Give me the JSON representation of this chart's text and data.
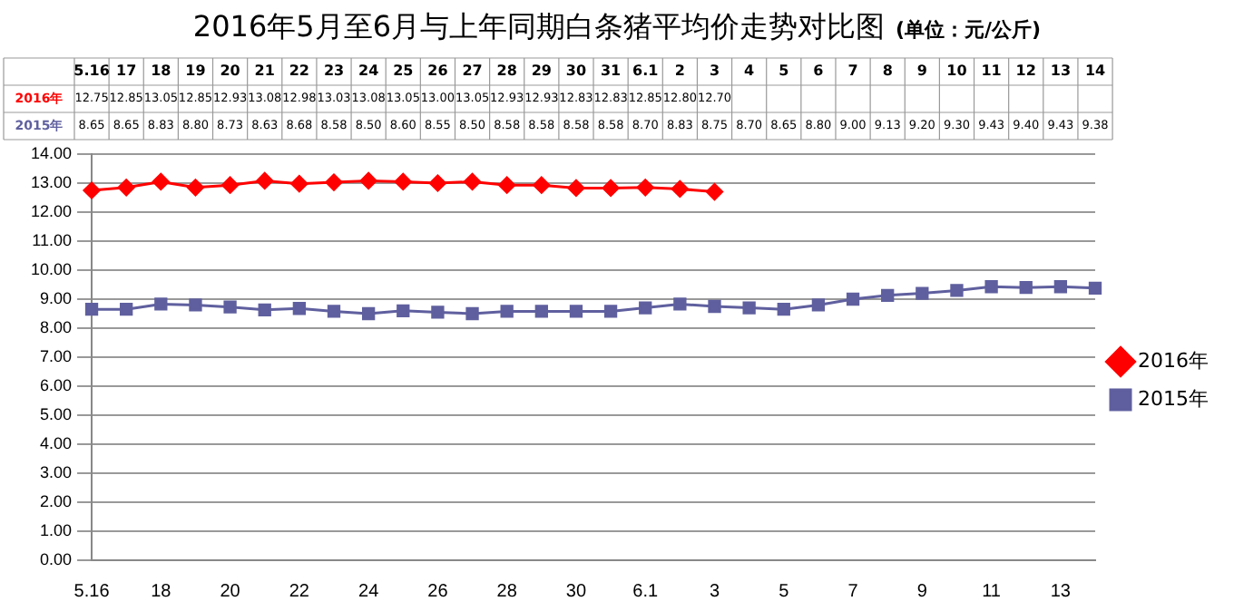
{
  "chart_data": {
    "type": "line",
    "title": "2016年5月至6月与上年同期白条猪平均价走势对比图",
    "subtitle": "(单位：元/公斤)",
    "categories": [
      "5.16",
      "17",
      "18",
      "19",
      "20",
      "21",
      "22",
      "23",
      "24",
      "25",
      "26",
      "27",
      "28",
      "29",
      "30",
      "31",
      "6.1",
      "2",
      "3",
      "4",
      "5",
      "6",
      "7",
      "8",
      "9",
      "10",
      "11",
      "12",
      "13",
      "14"
    ],
    "series": [
      {
        "name": "2016年",
        "color": "#ff0000",
        "marker": "diamond",
        "values": [
          12.75,
          12.85,
          13.05,
          12.85,
          12.93,
          13.08,
          12.98,
          13.03,
          13.08,
          13.05,
          13.0,
          13.05,
          12.93,
          12.93,
          12.83,
          12.83,
          12.85,
          12.8,
          12.7,
          null,
          null,
          null,
          null,
          null,
          null,
          null,
          null,
          null,
          null,
          null
        ],
        "value_labels": [
          "12.75",
          "12.85",
          "13.05",
          "12.85",
          "12.93",
          "13.08",
          "12.98",
          "13.03",
          "13.08",
          "13.05",
          "13.00",
          "13.05",
          "12.93",
          "12.93",
          "12.83",
          "12.83",
          "12.85",
          "12.80",
          "12.70",
          null,
          null,
          null,
          null,
          null,
          null,
          null,
          null,
          null,
          null,
          null
        ]
      },
      {
        "name": "2015年",
        "color": "#5f5f9f",
        "marker": "square",
        "values": [
          8.65,
          8.65,
          8.83,
          8.8,
          8.73,
          8.63,
          8.68,
          8.58,
          8.5,
          8.6,
          8.55,
          8.5,
          8.58,
          8.58,
          8.58,
          8.58,
          8.7,
          8.83,
          8.75,
          8.7,
          8.65,
          8.8,
          9.0,
          9.13,
          9.2,
          9.3,
          9.43,
          9.4,
          9.43,
          9.38
        ],
        "value_labels": [
          "8.65",
          "8.65",
          "8.83",
          "8.80",
          "8.73",
          "8.63",
          "8.68",
          "8.58",
          "8.50",
          "8.60",
          "8.55",
          "8.50",
          "8.58",
          "8.58",
          "8.58",
          "8.58",
          "8.70",
          "8.83",
          "8.75",
          "8.70",
          "8.65",
          "8.80",
          "9.00",
          "9.13",
          "9.20",
          "9.30",
          "9.43",
          "9.40",
          "9.43",
          "9.38"
        ]
      }
    ],
    "ylim": [
      0,
      14
    ],
    "yticks": [
      {
        "value": 0,
        "label": "0.00"
      },
      {
        "value": 1,
        "label": "1.00"
      },
      {
        "value": 2,
        "label": "2.00"
      },
      {
        "value": 3,
        "label": "3.00"
      },
      {
        "value": 4,
        "label": "4.00"
      },
      {
        "value": 5,
        "label": "5.00"
      },
      {
        "value": 6,
        "label": "6.00"
      },
      {
        "value": 7,
        "label": "7.00"
      },
      {
        "value": 8,
        "label": "8.00"
      },
      {
        "value": 9,
        "label": "9.00"
      },
      {
        "value": 10,
        "label": "10.00"
      },
      {
        "value": 11,
        "label": "11.00"
      },
      {
        "value": 12,
        "label": "12.00"
      },
      {
        "value": 13,
        "label": "13.00"
      },
      {
        "value": 14,
        "label": "14.00"
      }
    ],
    "grid": "y",
    "legend": "right",
    "line_style": "solid"
  }
}
